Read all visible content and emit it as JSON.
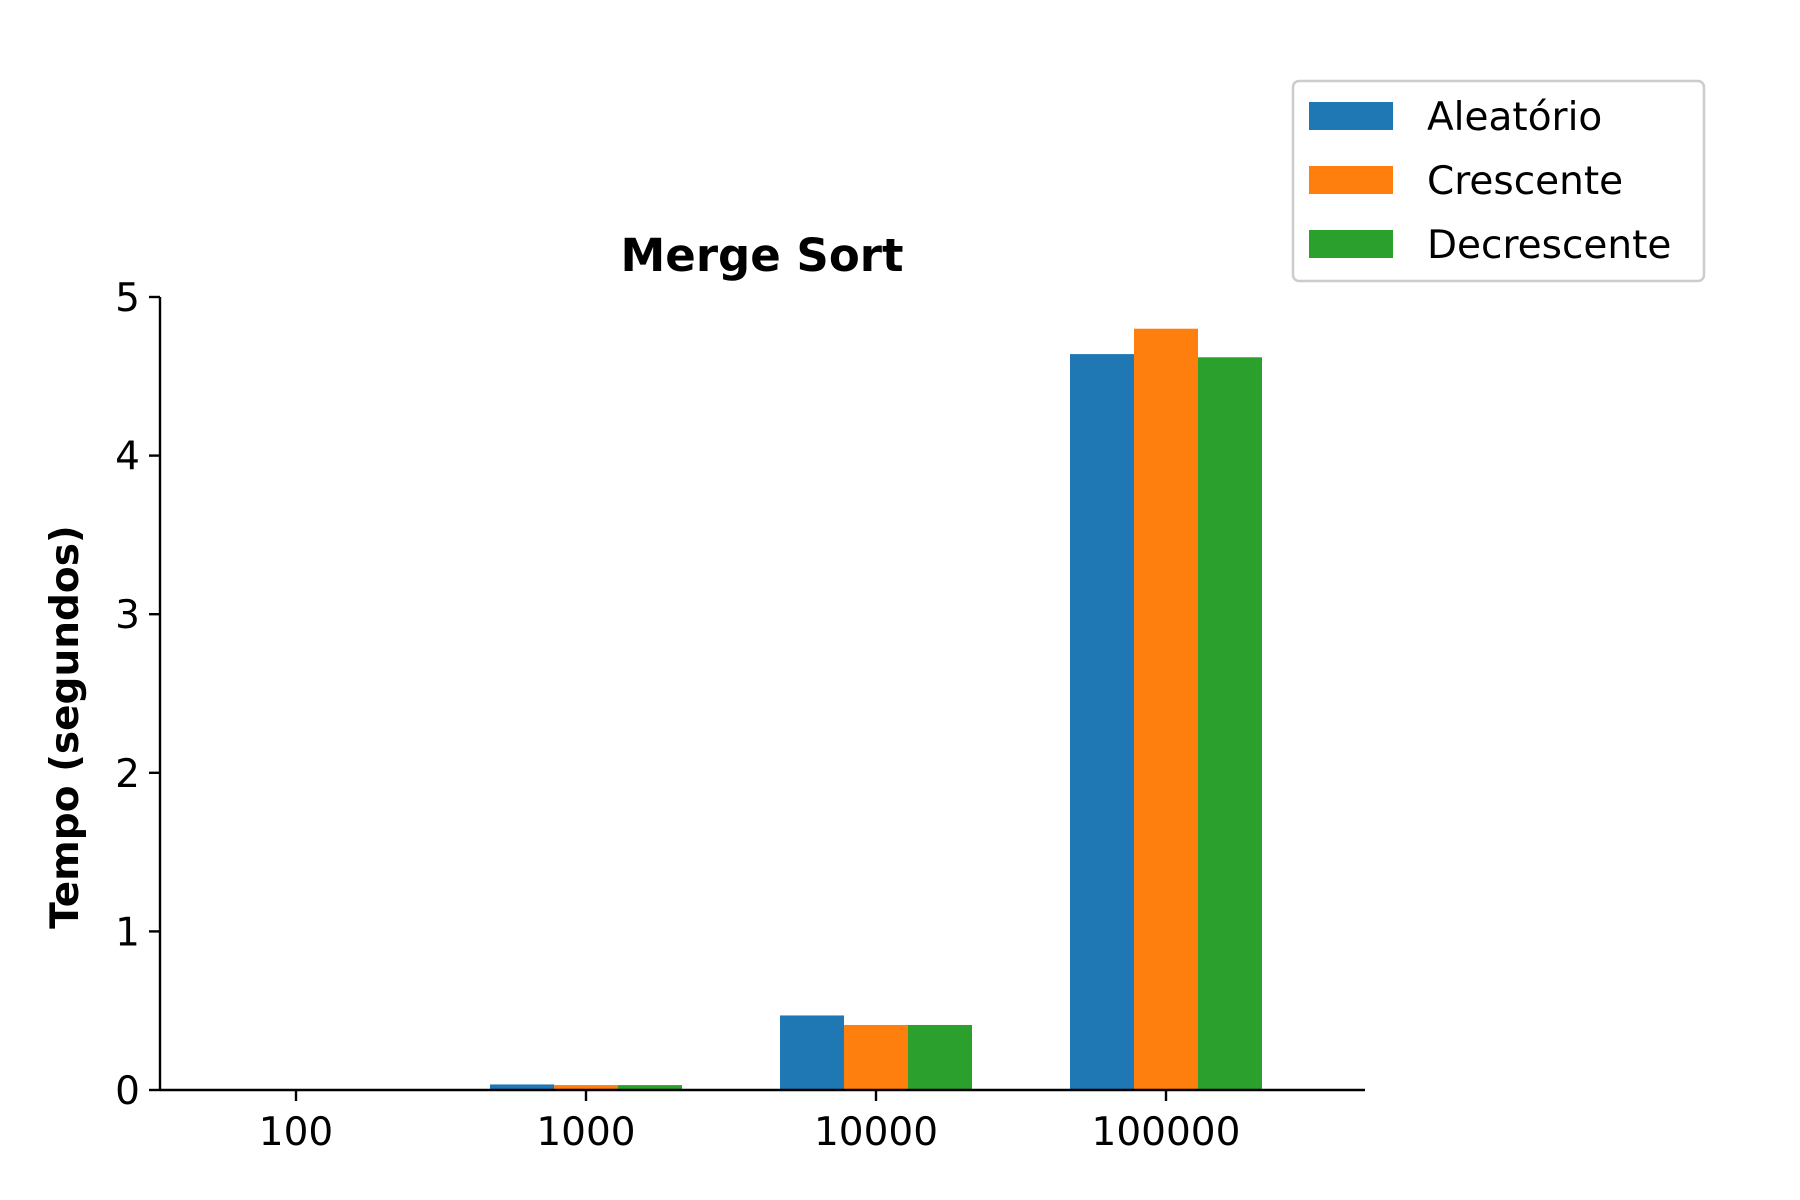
{
  "chart_data": {
    "type": "bar",
    "title": "Merge Sort",
    "xlabel": "",
    "ylabel": "Tempo (segundos)",
    "categories": [
      "100",
      "1000",
      "10000",
      "100000"
    ],
    "ylim": [
      0,
      5
    ],
    "yticks": [
      0,
      1,
      2,
      3,
      4,
      5
    ],
    "series": [
      {
        "name": "Aleatório",
        "color": "#1f77b4",
        "values": [
          0.0005,
          0.035,
          0.47,
          4.64
        ]
      },
      {
        "name": "Crescente",
        "color": "#ff7f0e",
        "values": [
          0.0004,
          0.031,
          0.41,
          4.8
        ]
      },
      {
        "name": "Decrescente",
        "color": "#2ca02c",
        "values": [
          0.0004,
          0.031,
          0.41,
          4.62
        ]
      }
    ],
    "legend_position": "top-right, outside plot",
    "grid": false
  }
}
